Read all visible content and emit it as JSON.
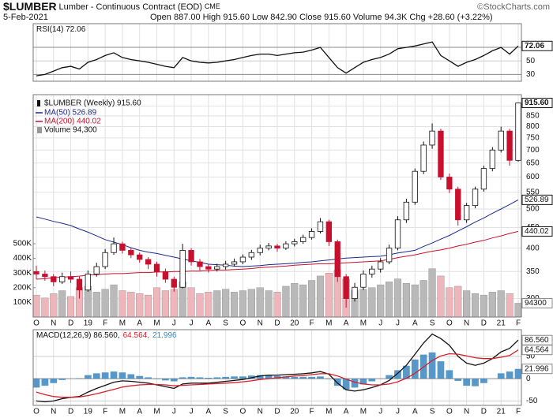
{
  "header": {
    "symbol": "$LUMBER",
    "name": "Lumber - Continuous Contract (EOD)",
    "exchange": "CME",
    "date": "5-Feb-2021",
    "quote": "Open 887.00  High 915.60  Low 842.90  Close 915.60  Volume 94.3K  Chg +28.60 (+3.22%)",
    "credit": "©StockCharts.com"
  },
  "chart_data": [
    {
      "type": "line",
      "series": [
        {
          "name": "RSI(14) 72.06",
          "color": "#111111",
          "values": [
            28,
            30,
            35,
            40,
            42,
            38,
            48,
            52,
            58,
            62,
            55,
            52,
            50,
            48,
            45,
            42,
            40,
            55,
            50,
            48,
            47,
            48,
            50,
            52,
            55,
            58,
            60,
            60,
            58,
            60,
            62,
            63,
            66,
            70,
            55,
            40,
            32,
            40,
            48,
            52,
            55,
            60,
            68,
            70,
            72,
            75,
            78,
            58,
            50,
            42,
            48,
            52,
            58,
            65,
            70,
            60,
            72.06
          ]
        }
      ],
      "ylim": [
        20,
        105
      ],
      "yticks": [
        30,
        50,
        70
      ],
      "last_labels": [
        {
          "value": 72.06,
          "label": "72.06"
        }
      ]
    },
    {
      "type": "candlestick",
      "title": "$LUMBER (Weekly) 915.60",
      "log_scale": true,
      "categories": [
        "O",
        null,
        "N",
        null,
        "D",
        null,
        "19",
        null,
        "F",
        null,
        "M",
        null,
        "A",
        null,
        "M",
        null,
        "J",
        null,
        "J",
        null,
        "A",
        null,
        "S",
        null,
        "O",
        null,
        "N",
        null,
        "D",
        null,
        "20",
        null,
        "F",
        null,
        "M",
        null,
        "A",
        null,
        "M",
        null,
        "J",
        null,
        "J",
        null,
        "A",
        null,
        "S",
        null,
        "O",
        null,
        "N",
        null,
        "D",
        null,
        "21",
        null,
        "F"
      ],
      "open": [
        350,
        345,
        340,
        330,
        340,
        335,
        315,
        345,
        360,
        390,
        410,
        395,
        385,
        375,
        365,
        350,
        335,
        320,
        395,
        370,
        360,
        355,
        360,
        365,
        370,
        380,
        390,
        400,
        405,
        400,
        410,
        415,
        425,
        440,
        465,
        415,
        340,
        300,
        320,
        345,
        355,
        370,
        400,
        470,
        520,
        620,
        720,
        780,
        600,
        560,
        470,
        510,
        560,
        630,
        700,
        780,
        660
      ],
      "high": [
        362,
        352,
        345,
        348,
        350,
        340,
        352,
        368,
        398,
        425,
        415,
        402,
        390,
        380,
        370,
        356,
        340,
        410,
        400,
        376,
        366,
        366,
        372,
        377,
        386,
        396,
        408,
        412,
        410,
        416,
        422,
        432,
        448,
        475,
        470,
        420,
        345,
        328,
        352,
        362,
        378,
        408,
        480,
        530,
        630,
        735,
        815,
        790,
        612,
        568,
        518,
        568,
        640,
        712,
        800,
        790,
        915.6
      ],
      "low": [
        335,
        332,
        322,
        326,
        328,
        300,
        312,
        340,
        355,
        385,
        388,
        378,
        368,
        355,
        340,
        328,
        312,
        318,
        362,
        352,
        348,
        350,
        354,
        360,
        365,
        374,
        384,
        395,
        392,
        396,
        404,
        410,
        420,
        435,
        405,
        330,
        285,
        295,
        315,
        338,
        348,
        365,
        395,
        462,
        512,
        610,
        705,
        590,
        548,
        455,
        462,
        502,
        552,
        620,
        690,
        640,
        655
      ],
      "close": [
        345,
        340,
        330,
        340,
        335,
        315,
        345,
        360,
        390,
        410,
        395,
        385,
        375,
        365,
        350,
        335,
        320,
        395,
        370,
        360,
        355,
        360,
        365,
        370,
        380,
        390,
        400,
        405,
        400,
        410,
        415,
        425,
        440,
        465,
        415,
        340,
        300,
        320,
        345,
        355,
        370,
        400,
        470,
        520,
        620,
        720,
        780,
        600,
        560,
        470,
        510,
        560,
        630,
        700,
        780,
        660,
        915.6
      ],
      "up_color": "#111111",
      "down_color": "#c8102e",
      "overlays": [
        {
          "name": "MA(50) 526.89",
          "color": "#1c2a8c",
          "values": [
            478,
            472,
            466,
            461,
            455,
            446,
            438,
            429,
            420,
            414,
            408,
            401,
            395,
            391,
            388,
            384,
            380,
            376,
            372,
            369,
            365,
            364,
            363,
            361,
            360,
            361,
            362,
            364,
            365,
            366,
            367,
            369,
            370,
            372,
            374,
            376,
            378,
            379,
            380,
            381,
            382,
            385,
            389,
            392,
            395,
            404,
            412,
            421,
            430,
            441,
            452,
            464,
            475,
            488,
            500,
            513,
            526.89
          ]
        },
        {
          "name": "MA(200) 440.02",
          "color": "#c8102e",
          "values": [
            335,
            336,
            338,
            339,
            340,
            341,
            343,
            344,
            345,
            346,
            346,
            347,
            348,
            348,
            349,
            349,
            350,
            350,
            351,
            351,
            352,
            353,
            353,
            354,
            355,
            356,
            358,
            359,
            360,
            361,
            363,
            364,
            365,
            366,
            366,
            367,
            368,
            369,
            370,
            371,
            372,
            375,
            379,
            382,
            385,
            389,
            393,
            396,
            400,
            405,
            409,
            414,
            418,
            424,
            429,
            435,
            440.02
          ]
        }
      ],
      "volume": {
        "name": "Volume 94,300",
        "up_color": "#b9b9b9",
        "down_color": "#eeb5ba",
        "values": [
          150000,
          130000,
          160000,
          180000,
          140000,
          200000,
          210000,
          170000,
          190000,
          220000,
          180000,
          170000,
          160000,
          150000,
          200000,
          180000,
          190000,
          240000,
          200000,
          160000,
          170000,
          180000,
          190000,
          170000,
          180000,
          190000,
          200000,
          180000,
          170000,
          210000,
          230000,
          220000,
          250000,
          280000,
          300000,
          320000,
          260000,
          180000,
          190000,
          200000,
          220000,
          240000,
          260000,
          230000,
          220000,
          250000,
          330000,
          280000,
          200000,
          210000,
          180000,
          160000,
          150000,
          170000,
          180000,
          160000,
          94300
        ],
        "ylim": [
          0,
          500000
        ],
        "yticks": [
          {
            "value": 100000,
            "label": "100K"
          },
          {
            "value": 200000,
            "label": "200K"
          },
          {
            "value": 300000,
            "label": "300K"
          },
          {
            "value": 400000,
            "label": "400K"
          },
          {
            "value": 500000,
            "label": "500K"
          }
        ],
        "last_labels": [
          {
            "value": 94300,
            "label": "94300"
          }
        ]
      },
      "ylim": [
        270,
        960
      ],
      "yticks": [
        300,
        350,
        400,
        450,
        500,
        550,
        600,
        650,
        700,
        750,
        800,
        850,
        900
      ],
      "last_labels": [
        {
          "value": 915.6,
          "label": "915.60"
        },
        {
          "value": 526.89,
          "label": "526.89"
        },
        {
          "value": 440.02,
          "label": "440.02"
        }
      ]
    },
    {
      "type": "line",
      "categories": [
        "O",
        null,
        "N",
        null,
        "D",
        null,
        "19",
        null,
        "F",
        null,
        "M",
        null,
        "A",
        null,
        "M",
        null,
        "J",
        null,
        "J",
        null,
        "A",
        null,
        "S",
        null,
        "O",
        null,
        "N",
        null,
        "D",
        null,
        "20",
        null,
        "F",
        null,
        "M",
        null,
        "A",
        null,
        "M",
        null,
        "J",
        null,
        "J",
        null,
        "A",
        null,
        "S",
        null,
        "O",
        null,
        "N",
        null,
        "D",
        null,
        "21",
        null,
        "F"
      ],
      "series": [
        {
          "name": "MACD(12,26,9) 86.560,",
          "color": "#111111",
          "values": [
            -50,
            -52,
            -50,
            -45,
            -42,
            -40,
            -30,
            -22,
            -15,
            -8,
            -5,
            -6,
            -8,
            -10,
            -14,
            -18,
            -22,
            -12,
            -10,
            -10,
            -10,
            -8,
            -6,
            -4,
            -2,
            2,
            6,
            8,
            8,
            9,
            10,
            11,
            13,
            16,
            10,
            -10,
            -25,
            -28,
            -25,
            -20,
            -14,
            -4,
            12,
            30,
            55,
            80,
            100,
            90,
            75,
            50,
            35,
            30,
            35,
            45,
            60,
            68,
            86.56
          ]
        },
        {
          "name": "64.564,",
          "color": "#d4202a",
          "values": [
            -30,
            -36,
            -40,
            -42,
            -42,
            -41,
            -38,
            -34,
            -29,
            -24,
            -19,
            -16,
            -14,
            -13,
            -13,
            -14,
            -16,
            -15,
            -14,
            -13,
            -12,
            -11,
            -10,
            -9,
            -7,
            -5,
            -2,
            0,
            2,
            4,
            6,
            7,
            9,
            11,
            11,
            6,
            -1,
            -8,
            -12,
            -14,
            -14,
            -12,
            -7,
            1,
            12,
            26,
            41,
            51,
            56,
            55,
            51,
            47,
            45,
            45,
            48,
            52,
            64.564
          ]
        },
        {
          "name": "21.996",
          "color": "#3a86c0",
          "type": "bar",
          "values": [
            -20,
            -16,
            -10,
            -3,
            0,
            1,
            8,
            12,
            14,
            16,
            14,
            10,
            6,
            3,
            -1,
            -4,
            -6,
            3,
            4,
            3,
            2,
            3,
            4,
            5,
            5,
            7,
            8,
            8,
            6,
            5,
            4,
            4,
            4,
            5,
            -1,
            -16,
            -24,
            -20,
            -13,
            -6,
            0,
            8,
            19,
            29,
            43,
            54,
            59,
            39,
            19,
            -5,
            -16,
            -17,
            -10,
            0,
            12,
            16,
            21.996
          ]
        }
      ],
      "ylim": [
        -60,
        110
      ],
      "yticks": [
        -50,
        0,
        50
      ],
      "last_labels": [
        {
          "value": 86.56,
          "label": "86.560"
        },
        {
          "value": 64.564,
          "label": "64.564"
        },
        {
          "value": 21.996,
          "label": "21.996"
        }
      ]
    }
  ]
}
